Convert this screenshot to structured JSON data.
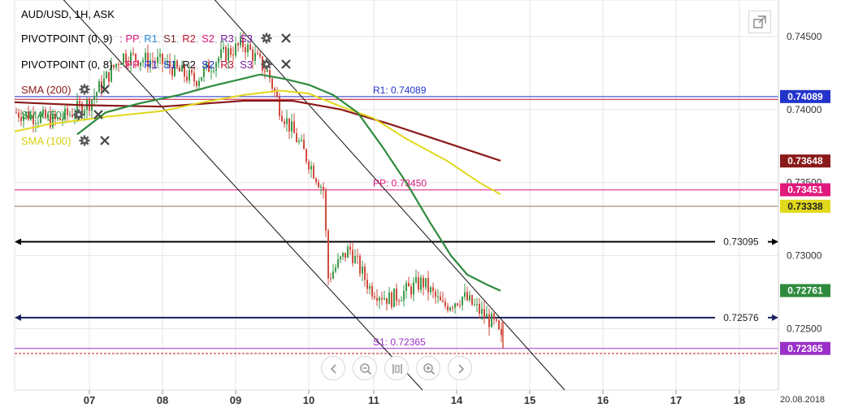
{
  "header": {
    "symbol_line": "AUD/USD, 1H, ASK",
    "indicators": [
      {
        "name": "PIVOTPOINT (0, 9)",
        "colon": ":",
        "levels": [
          "PP",
          "R1",
          "S1",
          "R2",
          "S2",
          "R3",
          "S3"
        ]
      },
      {
        "name": "PIVOTPOINT (0, 8)",
        "colon": ":",
        "levels": [
          "PP",
          "R1",
          "S1",
          "R2",
          "S2",
          "R3",
          "S3"
        ]
      },
      {
        "name": "SMA (200)"
      },
      {
        "name": "SMA (50)"
      },
      {
        "name": "SMA (100)"
      }
    ]
  },
  "colors": {
    "pp": "#e0197d",
    "r1": "#2233cc",
    "s1": "#7a2a2a",
    "r2": "#111111",
    "s2": "#2233cc",
    "r3": "#c0152f",
    "s3": "#7a1fa2",
    "sma200": "#8b1a1a",
    "sma50": "#2e8b3e",
    "sma100": "#e0d81a",
    "candle_up": "#3a9a4a",
    "candle_down": "#d24a3c",
    "h1": "#000000",
    "h2": "#1a2060",
    "grid": "#e6e6e6",
    "ma_flat": "#8a7a4a",
    "s2_line": "#9b30c9"
  },
  "chart_data": {
    "type": "candlestick",
    "ylim": [
      0.7208,
      0.7475
    ],
    "y_ticks": [
      "0.74500",
      "0.74000",
      "0.73500",
      "0.73000",
      "0.72500"
    ],
    "x_ticks": [
      "07",
      "08",
      "09",
      "10",
      "11",
      "14",
      "15",
      "16",
      "17",
      "18"
    ],
    "date_label": "20.08.2018",
    "levels": [
      {
        "label": "R1: 0.74089",
        "value": 0.74089,
        "badge": "0.74089"
      },
      {
        "label": "PP: 0.73450",
        "value": 0.7345,
        "badge": "0.73451"
      },
      {
        "label": "S1: 0.72365",
        "value": 0.72365,
        "badge": "0.72365"
      }
    ],
    "horizontal_lines": [
      {
        "label": "0.73095",
        "value": 0.73095
      },
      {
        "label": "0.72576",
        "value": 0.72576
      }
    ],
    "axis_badges": [
      {
        "value": 0.74089,
        "text": "0.74089",
        "color": "#2233cc"
      },
      {
        "value": 0.73648,
        "text": "0.73648",
        "color": "#8b1a1a"
      },
      {
        "value": 0.73451,
        "text": "0.73451",
        "color": "#e0197d"
      },
      {
        "value": 0.73338,
        "text": "0.73338",
        "color": "#e0d81a"
      },
      {
        "value": 0.72761,
        "text": "0.72761",
        "color": "#2e8b3e"
      },
      {
        "value": 0.72365,
        "text": "0.72365",
        "color": "#9b30c9"
      }
    ]
  }
}
